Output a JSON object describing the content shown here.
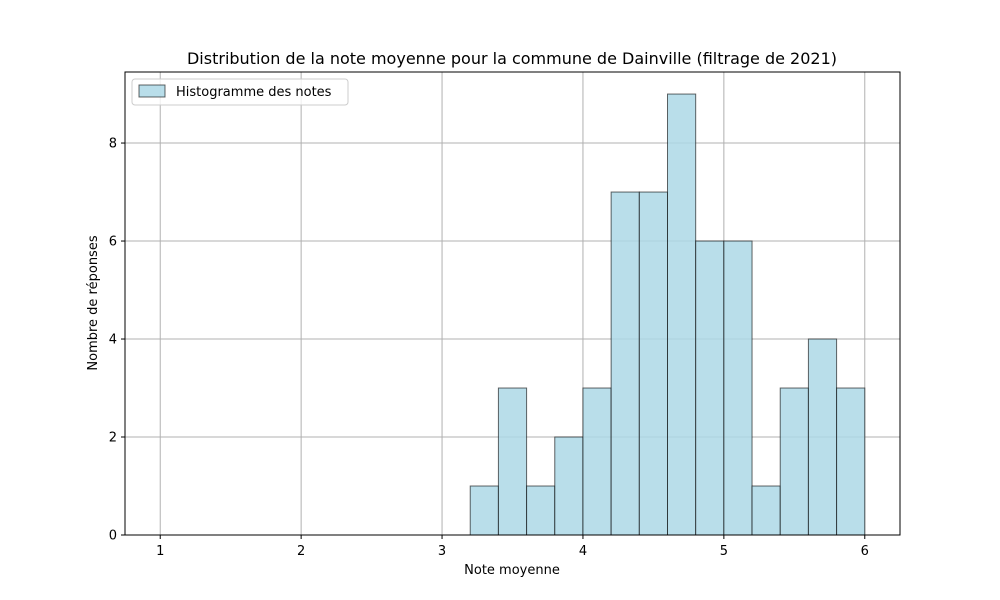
{
  "chart_data": {
    "type": "bar",
    "title": "Distribution de la note moyenne pour la commune de Dainville (filtrage de 2021)",
    "xlabel": "Note moyenne",
    "ylabel": "Nombre de réponses",
    "xlim": [
      0.75,
      6.25
    ],
    "ylim": [
      0,
      9.45
    ],
    "x_ticks": [
      1,
      2,
      3,
      4,
      5,
      6
    ],
    "x_tick_labels": [
      "1",
      "2",
      "3",
      "4",
      "5",
      "6"
    ],
    "y_ticks": [
      0,
      2,
      4,
      6,
      8
    ],
    "y_tick_labels": [
      "0",
      "2",
      "4",
      "6",
      "8"
    ],
    "grid": true,
    "legend_position": "top-left",
    "series": [
      {
        "name": "Histogramme des notes",
        "color": "#add8e6",
        "edge_color": "#000000",
        "bins": [
          {
            "x0": 1.0,
            "x1": 1.2,
            "value": 0
          },
          {
            "x0": 1.2,
            "x1": 1.4,
            "value": 0
          },
          {
            "x0": 1.4,
            "x1": 1.6,
            "value": 0
          },
          {
            "x0": 1.6,
            "x1": 1.8,
            "value": 0
          },
          {
            "x0": 1.8,
            "x1": 2.0,
            "value": 0
          },
          {
            "x0": 2.0,
            "x1": 2.2,
            "value": 0
          },
          {
            "x0": 2.2,
            "x1": 2.4,
            "value": 0
          },
          {
            "x0": 2.4,
            "x1": 2.6,
            "value": 0
          },
          {
            "x0": 2.6,
            "x1": 2.8,
            "value": 0
          },
          {
            "x0": 2.8,
            "x1": 3.0,
            "value": 0
          },
          {
            "x0": 3.0,
            "x1": 3.2,
            "value": 0
          },
          {
            "x0": 3.2,
            "x1": 3.4,
            "value": 1
          },
          {
            "x0": 3.4,
            "x1": 3.6,
            "value": 3
          },
          {
            "x0": 3.6,
            "x1": 3.8,
            "value": 1
          },
          {
            "x0": 3.8,
            "x1": 4.0,
            "value": 2
          },
          {
            "x0": 4.0,
            "x1": 4.2,
            "value": 3
          },
          {
            "x0": 4.2,
            "x1": 4.4,
            "value": 7
          },
          {
            "x0": 4.4,
            "x1": 4.6,
            "value": 7
          },
          {
            "x0": 4.6,
            "x1": 4.8,
            "value": 9
          },
          {
            "x0": 4.8,
            "x1": 5.0,
            "value": 6
          },
          {
            "x0": 5.0,
            "x1": 5.2,
            "value": 6
          },
          {
            "x0": 5.2,
            "x1": 5.4,
            "value": 1
          },
          {
            "x0": 5.4,
            "x1": 5.6,
            "value": 3
          },
          {
            "x0": 5.6,
            "x1": 5.8,
            "value": 4
          },
          {
            "x0": 5.8,
            "x1": 6.0,
            "value": 3
          }
        ]
      }
    ]
  }
}
